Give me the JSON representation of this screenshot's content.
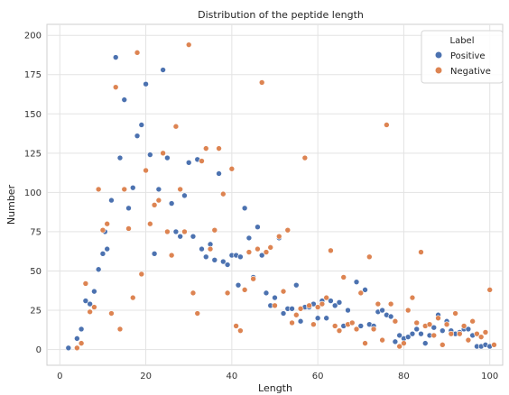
{
  "chart_data": {
    "type": "scatter",
    "title": "Distribution of the peptide length",
    "xlabel": "Length",
    "ylabel": "Number",
    "xlim": [
      -3,
      103
    ],
    "ylim": [
      -10,
      207
    ],
    "xticks": [
      0,
      20,
      40,
      60,
      80,
      100
    ],
    "yticks": [
      0,
      25,
      50,
      75,
      100,
      125,
      150,
      175,
      200
    ],
    "grid": true,
    "legend": {
      "title": "Label",
      "placement": "top-right"
    },
    "series": [
      {
        "name": "Positive",
        "color": "#4C72B0",
        "points": [
          [
            2,
            1
          ],
          [
            4,
            7
          ],
          [
            5,
            13
          ],
          [
            6,
            31
          ],
          [
            7,
            29
          ],
          [
            8,
            37
          ],
          [
            9,
            51
          ],
          [
            10,
            61
          ],
          [
            10.5,
            75
          ],
          [
            11,
            64
          ],
          [
            12,
            95
          ],
          [
            13,
            186
          ],
          [
            14,
            122
          ],
          [
            15,
            159
          ],
          [
            16,
            90
          ],
          [
            17,
            103
          ],
          [
            18,
            136
          ],
          [
            19,
            143
          ],
          [
            20,
            169
          ],
          [
            21,
            124
          ],
          [
            22,
            61
          ],
          [
            23,
            102
          ],
          [
            24,
            178
          ],
          [
            25,
            122
          ],
          [
            26,
            93
          ],
          [
            27,
            75
          ],
          [
            28,
            72
          ],
          [
            29,
            98
          ],
          [
            30,
            119
          ],
          [
            31,
            72
          ],
          [
            32,
            121
          ],
          [
            33,
            64
          ],
          [
            34,
            59
          ],
          [
            35,
            67
          ],
          [
            36,
            57
          ],
          [
            37,
            112
          ],
          [
            38,
            56
          ],
          [
            39,
            54
          ],
          [
            40,
            60
          ],
          [
            41,
            60
          ],
          [
            41.5,
            41
          ],
          [
            42,
            59
          ],
          [
            43,
            90
          ],
          [
            44,
            71
          ],
          [
            45,
            46
          ],
          [
            46,
            78
          ],
          [
            47,
            60
          ],
          [
            48,
            36
          ],
          [
            49,
            28
          ],
          [
            50,
            33
          ],
          [
            51,
            71
          ],
          [
            52,
            23
          ],
          [
            53,
            26
          ],
          [
            54,
            26
          ],
          [
            55,
            41
          ],
          [
            56,
            18
          ],
          [
            57,
            27
          ],
          [
            58,
            27
          ],
          [
            59,
            29
          ],
          [
            60,
            20
          ],
          [
            61,
            31
          ],
          [
            62,
            20
          ],
          [
            63,
            31
          ],
          [
            64,
            28
          ],
          [
            65,
            30
          ],
          [
            66,
            15
          ],
          [
            67,
            25
          ],
          [
            68,
            17
          ],
          [
            69,
            43
          ],
          [
            70,
            15
          ],
          [
            71,
            38
          ],
          [
            72,
            16
          ],
          [
            73,
            15
          ],
          [
            74,
            24
          ],
          [
            75,
            25
          ],
          [
            76,
            22
          ],
          [
            77,
            21
          ],
          [
            78,
            5
          ],
          [
            79,
            9
          ],
          [
            80,
            7
          ],
          [
            81,
            8
          ],
          [
            82,
            10
          ],
          [
            83,
            13
          ],
          [
            84,
            10
          ],
          [
            85,
            4
          ],
          [
            86,
            9
          ],
          [
            87,
            14
          ],
          [
            88,
            22
          ],
          [
            89,
            12
          ],
          [
            90,
            18
          ],
          [
            91,
            12
          ],
          [
            92,
            10
          ],
          [
            93,
            11
          ],
          [
            94,
            13
          ],
          [
            95,
            13
          ],
          [
            96,
            9
          ],
          [
            97,
            2
          ],
          [
            98,
            2
          ],
          [
            99,
            3
          ],
          [
            100,
            2
          ]
        ]
      },
      {
        "name": "Negative",
        "color": "#DD8452",
        "points": [
          [
            4,
            1
          ],
          [
            5,
            4
          ],
          [
            6,
            42
          ],
          [
            7,
            24
          ],
          [
            8,
            27
          ],
          [
            9,
            102
          ],
          [
            10,
            76
          ],
          [
            11,
            80
          ],
          [
            12,
            23
          ],
          [
            13,
            167
          ],
          [
            14,
            13
          ],
          [
            15,
            102
          ],
          [
            16,
            77
          ],
          [
            17,
            33
          ],
          [
            18,
            189
          ],
          [
            19,
            48
          ],
          [
            20,
            114
          ],
          [
            21,
            80
          ],
          [
            22,
            92
          ],
          [
            23,
            95
          ],
          [
            24,
            125
          ],
          [
            25,
            75
          ],
          [
            26,
            60
          ],
          [
            27,
            142
          ],
          [
            28,
            102
          ],
          [
            29,
            75
          ],
          [
            30,
            194
          ],
          [
            31,
            36
          ],
          [
            32,
            23
          ],
          [
            33,
            120
          ],
          [
            34,
            128
          ],
          [
            35,
            64
          ],
          [
            36,
            76
          ],
          [
            37,
            128
          ],
          [
            38,
            99
          ],
          [
            39,
            36
          ],
          [
            40,
            115
          ],
          [
            41,
            15
          ],
          [
            42,
            12
          ],
          [
            43,
            38
          ],
          [
            44,
            62
          ],
          [
            45,
            45
          ],
          [
            46,
            64
          ],
          [
            47,
            170
          ],
          [
            48,
            62
          ],
          [
            49,
            65
          ],
          [
            50,
            28
          ],
          [
            51,
            72
          ],
          [
            52,
            37
          ],
          [
            53,
            76
          ],
          [
            54,
            17
          ],
          [
            55,
            22
          ],
          [
            56,
            26
          ],
          [
            57,
            122
          ],
          [
            58,
            28
          ],
          [
            59,
            16
          ],
          [
            60,
            27
          ],
          [
            61,
            29
          ],
          [
            62,
            33
          ],
          [
            63,
            63
          ],
          [
            64,
            15
          ],
          [
            65,
            12
          ],
          [
            66,
            46
          ],
          [
            67,
            16
          ],
          [
            68,
            17
          ],
          [
            69,
            13
          ],
          [
            70,
            36
          ],
          [
            71,
            4
          ],
          [
            72,
            59
          ],
          [
            73,
            13
          ],
          [
            74,
            29
          ],
          [
            75,
            6
          ],
          [
            76,
            143
          ],
          [
            77,
            29
          ],
          [
            78,
            18
          ],
          [
            79,
            2
          ],
          [
            80,
            4
          ],
          [
            81,
            25
          ],
          [
            82,
            33
          ],
          [
            83,
            17
          ],
          [
            84,
            62
          ],
          [
            85,
            15
          ],
          [
            86,
            16
          ],
          [
            87,
            9
          ],
          [
            88,
            20
          ],
          [
            89,
            3
          ],
          [
            90,
            16
          ],
          [
            91,
            10
          ],
          [
            92,
            23
          ],
          [
            93,
            10
          ],
          [
            94,
            15
          ],
          [
            95,
            6
          ],
          [
            96,
            18
          ],
          [
            97,
            10
          ],
          [
            98,
            8
          ],
          [
            99,
            11
          ],
          [
            100,
            38
          ],
          [
            101,
            3
          ]
        ]
      }
    ]
  }
}
